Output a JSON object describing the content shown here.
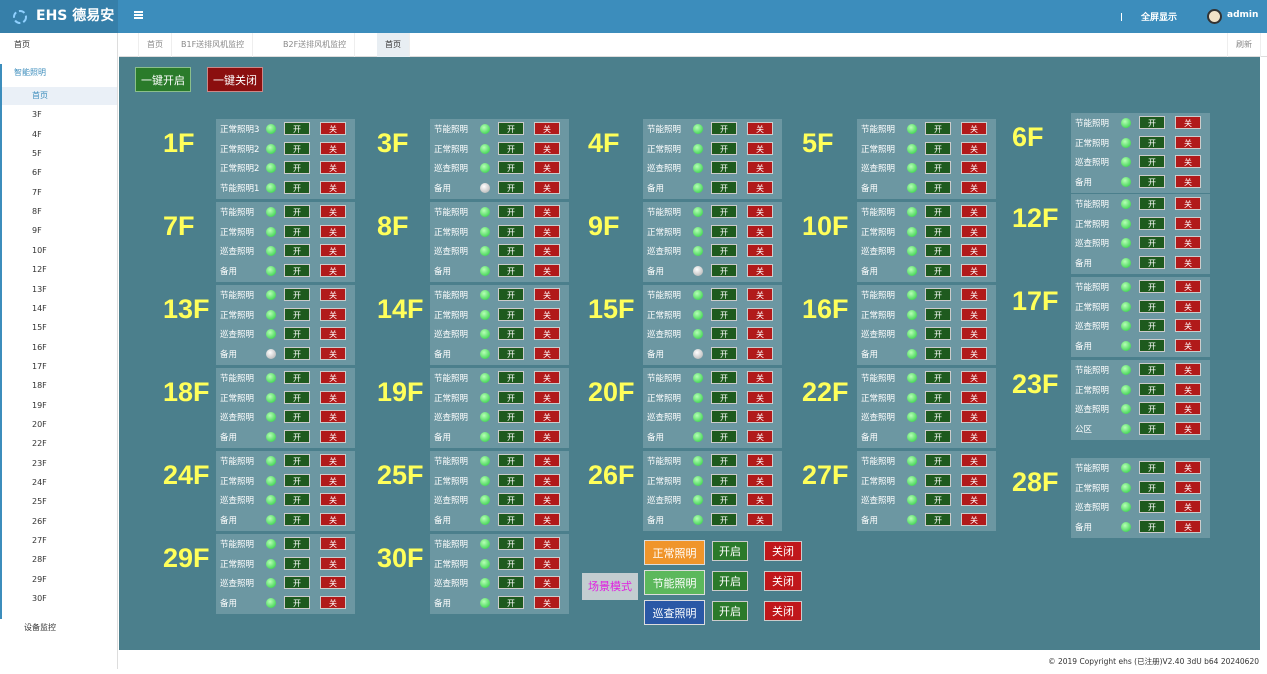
{
  "header": {
    "logo": "EHS 德易安",
    "fullscreen": "全屏显示",
    "user": "admin"
  },
  "sidebar": {
    "home": "首页",
    "lighting": "智能照明",
    "lighting_items": [
      "首页",
      "3F",
      "4F",
      "5F",
      "6F",
      "7F",
      "8F",
      "9F",
      "10F",
      "12F",
      "13F",
      "14F",
      "15F",
      "16F",
      "17F",
      "18F",
      "19F",
      "20F",
      "22F",
      "23F",
      "24F",
      "25F",
      "26F",
      "27F",
      "28F",
      "29F",
      "30F"
    ],
    "active_item": 0,
    "devices": "设备监控"
  },
  "tabs": {
    "items": [
      "首页",
      "B1F送排风机监控",
      "B2F送排风机监控",
      "首页"
    ],
    "active": 3,
    "refresh": "刷新"
  },
  "toolbar": {
    "all_on": "一键开启",
    "all_off": "一键关闭"
  },
  "controls": {
    "on": "开",
    "off": "关"
  },
  "floors": [
    {
      "name": "1F",
      "rows": [
        {
          "label": "正常照明3",
          "lit": true
        },
        {
          "label": "正常照明2",
          "lit": true
        },
        {
          "label": "正常照明2",
          "lit": true
        },
        {
          "label": "节能照明1",
          "lit": true
        }
      ]
    },
    {
      "name": "3F",
      "rows": [
        {
          "label": "节能照明",
          "lit": true
        },
        {
          "label": "正常照明",
          "lit": true
        },
        {
          "label": "巡查照明",
          "lit": true
        },
        {
          "label": "备用",
          "lit": false
        }
      ]
    },
    {
      "name": "4F",
      "rows": [
        {
          "label": "节能照明",
          "lit": true
        },
        {
          "label": "正常照明",
          "lit": true
        },
        {
          "label": "巡查照明",
          "lit": true
        },
        {
          "label": "备用",
          "lit": true
        }
      ]
    },
    {
      "name": "5F",
      "rows": [
        {
          "label": "节能照明",
          "lit": true
        },
        {
          "label": "正常照明",
          "lit": true
        },
        {
          "label": "巡查照明",
          "lit": true
        },
        {
          "label": "备用",
          "lit": true
        }
      ]
    },
    {
      "name": "6F",
      "rows": [
        {
          "label": "节能照明",
          "lit": true
        },
        {
          "label": "正常照明",
          "lit": true
        },
        {
          "label": "巡查照明",
          "lit": true
        },
        {
          "label": "备用",
          "lit": true
        }
      ]
    },
    {
      "name": "7F",
      "rows": [
        {
          "label": "节能照明",
          "lit": true
        },
        {
          "label": "正常照明",
          "lit": true
        },
        {
          "label": "巡查照明",
          "lit": true
        },
        {
          "label": "备用",
          "lit": true
        }
      ]
    },
    {
      "name": "8F",
      "rows": [
        {
          "label": "节能照明",
          "lit": true
        },
        {
          "label": "正常照明",
          "lit": true
        },
        {
          "label": "巡查照明",
          "lit": true
        },
        {
          "label": "备用",
          "lit": true
        }
      ]
    },
    {
      "name": "9F",
      "rows": [
        {
          "label": "节能照明",
          "lit": true
        },
        {
          "label": "正常照明",
          "lit": true
        },
        {
          "label": "巡查照明",
          "lit": true
        },
        {
          "label": "备用",
          "lit": false
        }
      ]
    },
    {
      "name": "10F",
      "rows": [
        {
          "label": "节能照明",
          "lit": true
        },
        {
          "label": "正常照明",
          "lit": true
        },
        {
          "label": "巡查照明",
          "lit": true
        },
        {
          "label": "备用",
          "lit": true
        }
      ]
    },
    {
      "name": "12F",
      "rows": [
        {
          "label": "节能照明",
          "lit": true
        },
        {
          "label": "正常照明",
          "lit": true
        },
        {
          "label": "巡查照明",
          "lit": true
        },
        {
          "label": "备用",
          "lit": true
        }
      ]
    },
    {
      "name": "13F",
      "rows": [
        {
          "label": "节能照明",
          "lit": true
        },
        {
          "label": "正常照明",
          "lit": true
        },
        {
          "label": "巡查照明",
          "lit": true
        },
        {
          "label": "备用",
          "lit": false
        }
      ]
    },
    {
      "name": "14F",
      "rows": [
        {
          "label": "节能照明",
          "lit": true
        },
        {
          "label": "正常照明",
          "lit": true
        },
        {
          "label": "巡查照明",
          "lit": true
        },
        {
          "label": "备用",
          "lit": true
        }
      ]
    },
    {
      "name": "15F",
      "rows": [
        {
          "label": "节能照明",
          "lit": true
        },
        {
          "label": "正常照明",
          "lit": true
        },
        {
          "label": "巡查照明",
          "lit": true
        },
        {
          "label": "备用",
          "lit": false
        }
      ]
    },
    {
      "name": "16F",
      "rows": [
        {
          "label": "节能照明",
          "lit": true
        },
        {
          "label": "正常照明",
          "lit": true
        },
        {
          "label": "巡查照明",
          "lit": true
        },
        {
          "label": "备用",
          "lit": true
        }
      ]
    },
    {
      "name": "17F",
      "rows": [
        {
          "label": "节能照明",
          "lit": true
        },
        {
          "label": "正常照明",
          "lit": true
        },
        {
          "label": "巡查照明",
          "lit": true
        },
        {
          "label": "备用",
          "lit": true
        }
      ]
    },
    {
      "name": "18F",
      "rows": [
        {
          "label": "节能照明",
          "lit": true
        },
        {
          "label": "正常照明",
          "lit": true
        },
        {
          "label": "巡查照明",
          "lit": true
        },
        {
          "label": "备用",
          "lit": true
        }
      ]
    },
    {
      "name": "19F",
      "rows": [
        {
          "label": "节能照明",
          "lit": true
        },
        {
          "label": "正常照明",
          "lit": true
        },
        {
          "label": "巡查照明",
          "lit": true
        },
        {
          "label": "备用",
          "lit": true
        }
      ]
    },
    {
      "name": "20F",
      "rows": [
        {
          "label": "节能照明",
          "lit": true
        },
        {
          "label": "正常照明",
          "lit": true
        },
        {
          "label": "巡查照明",
          "lit": true
        },
        {
          "label": "备用",
          "lit": true
        }
      ]
    },
    {
      "name": "22F",
      "rows": [
        {
          "label": "节能照明",
          "lit": true
        },
        {
          "label": "正常照明",
          "lit": true
        },
        {
          "label": "巡查照明",
          "lit": true
        },
        {
          "label": "备用",
          "lit": true
        }
      ]
    },
    {
      "name": "23F",
      "rows": [
        {
          "label": "节能照明",
          "lit": true
        },
        {
          "label": "正常照明",
          "lit": true
        },
        {
          "label": "巡查照明",
          "lit": true
        },
        {
          "label": "公区",
          "lit": true
        }
      ]
    },
    {
      "name": "24F",
      "rows": [
        {
          "label": "节能照明",
          "lit": true
        },
        {
          "label": "正常照明",
          "lit": true
        },
        {
          "label": "巡查照明",
          "lit": true
        },
        {
          "label": "备用",
          "lit": true
        }
      ]
    },
    {
      "name": "25F",
      "rows": [
        {
          "label": "节能照明",
          "lit": true
        },
        {
          "label": "正常照明",
          "lit": true
        },
        {
          "label": "巡查照明",
          "lit": true
        },
        {
          "label": "备用",
          "lit": true
        }
      ]
    },
    {
      "name": "26F",
      "rows": [
        {
          "label": "节能照明",
          "lit": true
        },
        {
          "label": "正常照明",
          "lit": true
        },
        {
          "label": "巡查照明",
          "lit": true
        },
        {
          "label": "备用",
          "lit": true
        }
      ]
    },
    {
      "name": "27F",
      "rows": [
        {
          "label": "节能照明",
          "lit": true
        },
        {
          "label": "正常照明",
          "lit": true
        },
        {
          "label": "巡查照明",
          "lit": true
        },
        {
          "label": "备用",
          "lit": true
        }
      ]
    },
    {
      "name": "28F",
      "rows": [
        {
          "label": "节能照明",
          "lit": true
        },
        {
          "label": "正常照明",
          "lit": true
        },
        {
          "label": "巡查照明",
          "lit": true
        },
        {
          "label": "备用",
          "lit": true
        }
      ]
    },
    {
      "name": "29F",
      "rows": [
        {
          "label": "节能照明",
          "lit": true
        },
        {
          "label": "正常照明",
          "lit": true
        },
        {
          "label": "巡查照明",
          "lit": true
        },
        {
          "label": "备用",
          "lit": true
        }
      ]
    },
    {
      "name": "30F",
      "rows": [
        {
          "label": "节能照明",
          "lit": true
        },
        {
          "label": "正常照明",
          "lit": true
        },
        {
          "label": "巡查照明",
          "lit": true
        },
        {
          "label": "备用",
          "lit": true
        }
      ]
    }
  ],
  "scene": {
    "title": "场景模式",
    "on": "开启",
    "off": "关闭",
    "modes": [
      {
        "label": "正常照明",
        "color": "#f0952b"
      },
      {
        "label": "节能照明",
        "color": "#5cb85c"
      },
      {
        "label": "巡查照明",
        "color": "#2a58a6"
      }
    ]
  },
  "footer": "© 2019 Copyright ehs (已注册)V2.40 3dU b64 20240620"
}
